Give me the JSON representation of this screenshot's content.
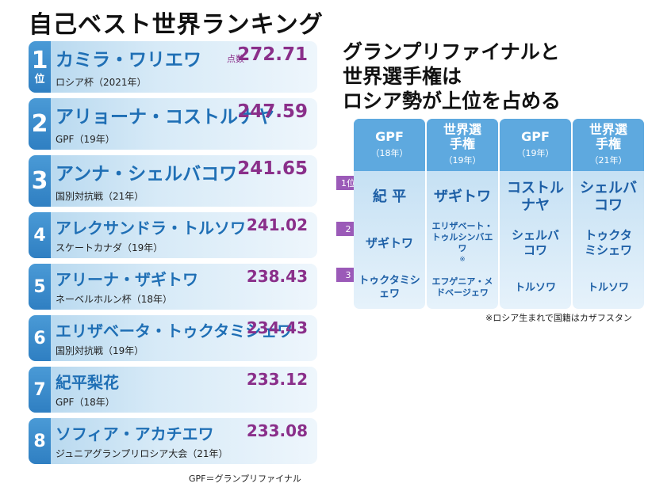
{
  "title_left": "自己ベスト世界ランキング",
  "score_label": "点数",
  "rank_pos": "位",
  "rankings": [
    {
      "rank": "1",
      "name": "カミラ・ワリエワ",
      "score": "272.71",
      "event": "ロシア杯（2021年）"
    },
    {
      "rank": "2",
      "name": "アリョーナ・コストルナヤ",
      "score": "247.59",
      "event": "GPF（19年）"
    },
    {
      "rank": "3",
      "name": "アンナ・シェルバコワ",
      "score": "241.65",
      "event": "国別対抗戦（21年）"
    },
    {
      "rank": "4",
      "name": "アレクサンドラ・トルソワ",
      "score": "241.02",
      "event": "スケートカナダ（19年）"
    },
    {
      "rank": "5",
      "name": "アリーナ・ザギトワ",
      "score": "238.43",
      "event": "ネーベルホルン杯（18年）"
    },
    {
      "rank": "6",
      "name": "エリザベータ・トゥクタミシェワ",
      "score": "234.43",
      "event": "国別対抗戦（19年）"
    },
    {
      "rank": "7",
      "name": "紀平梨花",
      "score": "233.12",
      "event": "GPF（18年）"
    },
    {
      "rank": "8",
      "name": "ソフィア・アカチエワ",
      "score": "233.08",
      "event": "ジュニアグランプリロシア大会（21年）"
    }
  ],
  "note_left": "GPF＝グランプリファイナル",
  "title_right": [
    "グランプリファイナルと",
    "世界選手権は",
    "ロシア勢が上位を占める"
  ],
  "place_tags": [
    "1位",
    "2",
    "3"
  ],
  "columns": [
    {
      "h1": "GPF",
      "h2": "（18年）",
      "p1": "紀 平",
      "p2": "ザギトワ",
      "p3": "トゥクタミシェワ"
    },
    {
      "h1": "世界選手権",
      "h2": "（19年）",
      "p1": "ザギトワ",
      "p2": "エリザベート・トゥルシンバエワ",
      "p3": "エフゲニア・メドベージェワ"
    },
    {
      "h1": "GPF",
      "h2": "（19年）",
      "p1": "コストルナヤ",
      "p2": "シェルバコワ",
      "p3": "トルソワ"
    },
    {
      "h1": "世界選手権",
      "h2": "（21年）",
      "p1": "シェルバコワ",
      "p2": "トゥクタミシェワ",
      "p3": "トルソワ"
    }
  ],
  "asterisk": "※",
  "footnote": "※ロシア生まれで国籍はカザフスタン"
}
